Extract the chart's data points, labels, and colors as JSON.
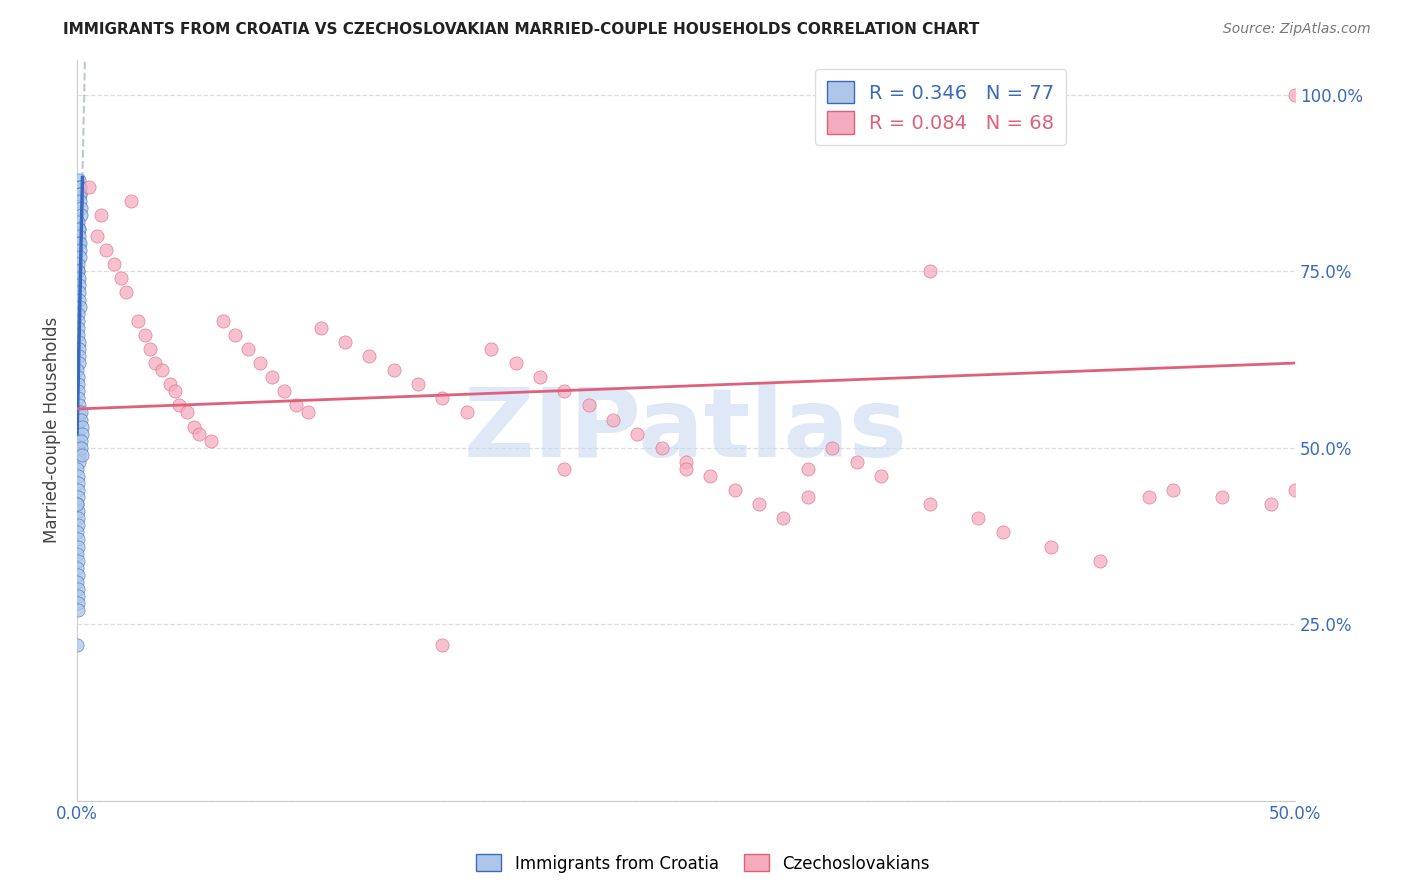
{
  "title": "IMMIGRANTS FROM CROATIA VS CZECHOSLOVAKIAN MARRIED-COUPLE HOUSEHOLDS CORRELATION CHART",
  "source": "Source: ZipAtlas.com",
  "ylabel": "Married-couple Households",
  "xlim": [
    0.0,
    0.5
  ],
  "ylim": [
    0.0,
    1.05
  ],
  "ytick_vals": [
    0.0,
    0.25,
    0.5,
    0.75,
    1.0
  ],
  "xtick_vals": [
    0.0,
    0.05,
    0.1,
    0.15,
    0.2,
    0.25,
    0.3,
    0.35,
    0.4,
    0.45,
    0.5
  ],
  "croatia_R": 0.346,
  "croatia_N": 77,
  "czech_R": 0.084,
  "czech_N": 68,
  "croatia_color": "#aec6e8",
  "czech_color": "#f5abbe",
  "croatia_line_color": "#3a6abf",
  "czech_line_color": "#e0607a",
  "watermark_color": "#c8daf0",
  "watermark_text": "ZIPatlas",
  "grid_color": "#dddddd",
  "axis_label_color": "#3a6abf",
  "title_color": "#222222",
  "source_color": "#777777",
  "ylabel_color": "#444444",
  "croatia_x": [
    0.0008,
    0.0009,
    0.001,
    0.0011,
    0.0012,
    0.0013,
    0.0014,
    0.0015,
    0.0005,
    0.0006,
    0.0007,
    0.0008,
    0.0009,
    0.001,
    0.0011,
    0.0012,
    0.0003,
    0.0004,
    0.0005,
    0.0006,
    0.0007,
    0.0008,
    0.0009,
    0.001,
    0.0002,
    0.0003,
    0.0004,
    0.0005,
    0.0006,
    0.0007,
    0.0008,
    0.0009,
    0.0001,
    0.0002,
    0.0003,
    0.0004,
    0.0005,
    0.0006,
    0.0007,
    0.0008,
    0.0001,
    0.0002,
    0.0003,
    0.0004,
    0.0005,
    0.0006,
    0.0007,
    0.0001,
    0.0002,
    0.0003,
    0.0004,
    0.0005,
    0.0001,
    0.0002,
    0.0003,
    0.0004,
    0.0001,
    0.0002,
    0.0003,
    0.0001,
    0.0002,
    0.0001,
    0.0002,
    0.0001,
    0.0002,
    0.0003,
    0.0004,
    0.0005,
    0.0016,
    0.0018,
    0.002,
    0.0022,
    0.0015,
    0.0017,
    0.0019,
    0.0001,
    0.0001
  ],
  "croatia_y": [
    0.88,
    0.87,
    0.87,
    0.86,
    0.86,
    0.85,
    0.84,
    0.83,
    0.82,
    0.81,
    0.81,
    0.8,
    0.79,
    0.79,
    0.78,
    0.77,
    0.76,
    0.75,
    0.75,
    0.74,
    0.73,
    0.72,
    0.71,
    0.7,
    0.69,
    0.68,
    0.67,
    0.66,
    0.65,
    0.64,
    0.63,
    0.62,
    0.61,
    0.6,
    0.59,
    0.58,
    0.57,
    0.56,
    0.55,
    0.54,
    0.53,
    0.52,
    0.51,
    0.5,
    0.5,
    0.49,
    0.48,
    0.47,
    0.46,
    0.45,
    0.44,
    0.43,
    0.42,
    0.41,
    0.4,
    0.39,
    0.38,
    0.37,
    0.36,
    0.35,
    0.34,
    0.33,
    0.32,
    0.31,
    0.3,
    0.29,
    0.28,
    0.27,
    0.55,
    0.54,
    0.53,
    0.52,
    0.51,
    0.5,
    0.49,
    0.22,
    0.42
  ],
  "czech_x": [
    0.005,
    0.008,
    0.01,
    0.012,
    0.015,
    0.018,
    0.02,
    0.022,
    0.025,
    0.028,
    0.03,
    0.032,
    0.035,
    0.038,
    0.04,
    0.042,
    0.045,
    0.048,
    0.05,
    0.055,
    0.06,
    0.065,
    0.07,
    0.075,
    0.08,
    0.085,
    0.09,
    0.095,
    0.1,
    0.11,
    0.12,
    0.13,
    0.14,
    0.15,
    0.16,
    0.17,
    0.18,
    0.19,
    0.2,
    0.21,
    0.22,
    0.23,
    0.24,
    0.25,
    0.26,
    0.27,
    0.28,
    0.29,
    0.3,
    0.31,
    0.32,
    0.33,
    0.35,
    0.37,
    0.38,
    0.4,
    0.42,
    0.44,
    0.45,
    0.47,
    0.49,
    0.5,
    0.15,
    0.2,
    0.25,
    0.3,
    0.35,
    0.5
  ],
  "czech_y": [
    0.87,
    0.8,
    0.83,
    0.78,
    0.76,
    0.74,
    0.72,
    0.85,
    0.68,
    0.66,
    0.64,
    0.62,
    0.61,
    0.59,
    0.58,
    0.56,
    0.55,
    0.53,
    0.52,
    0.51,
    0.68,
    0.66,
    0.64,
    0.62,
    0.6,
    0.58,
    0.56,
    0.55,
    0.67,
    0.65,
    0.63,
    0.61,
    0.59,
    0.57,
    0.55,
    0.64,
    0.62,
    0.6,
    0.58,
    0.56,
    0.54,
    0.52,
    0.5,
    0.48,
    0.46,
    0.44,
    0.42,
    0.4,
    0.43,
    0.5,
    0.48,
    0.46,
    0.42,
    0.4,
    0.38,
    0.36,
    0.34,
    0.43,
    0.44,
    0.43,
    0.42,
    1.0,
    0.22,
    0.47,
    0.47,
    0.47,
    0.75,
    0.44
  ]
}
